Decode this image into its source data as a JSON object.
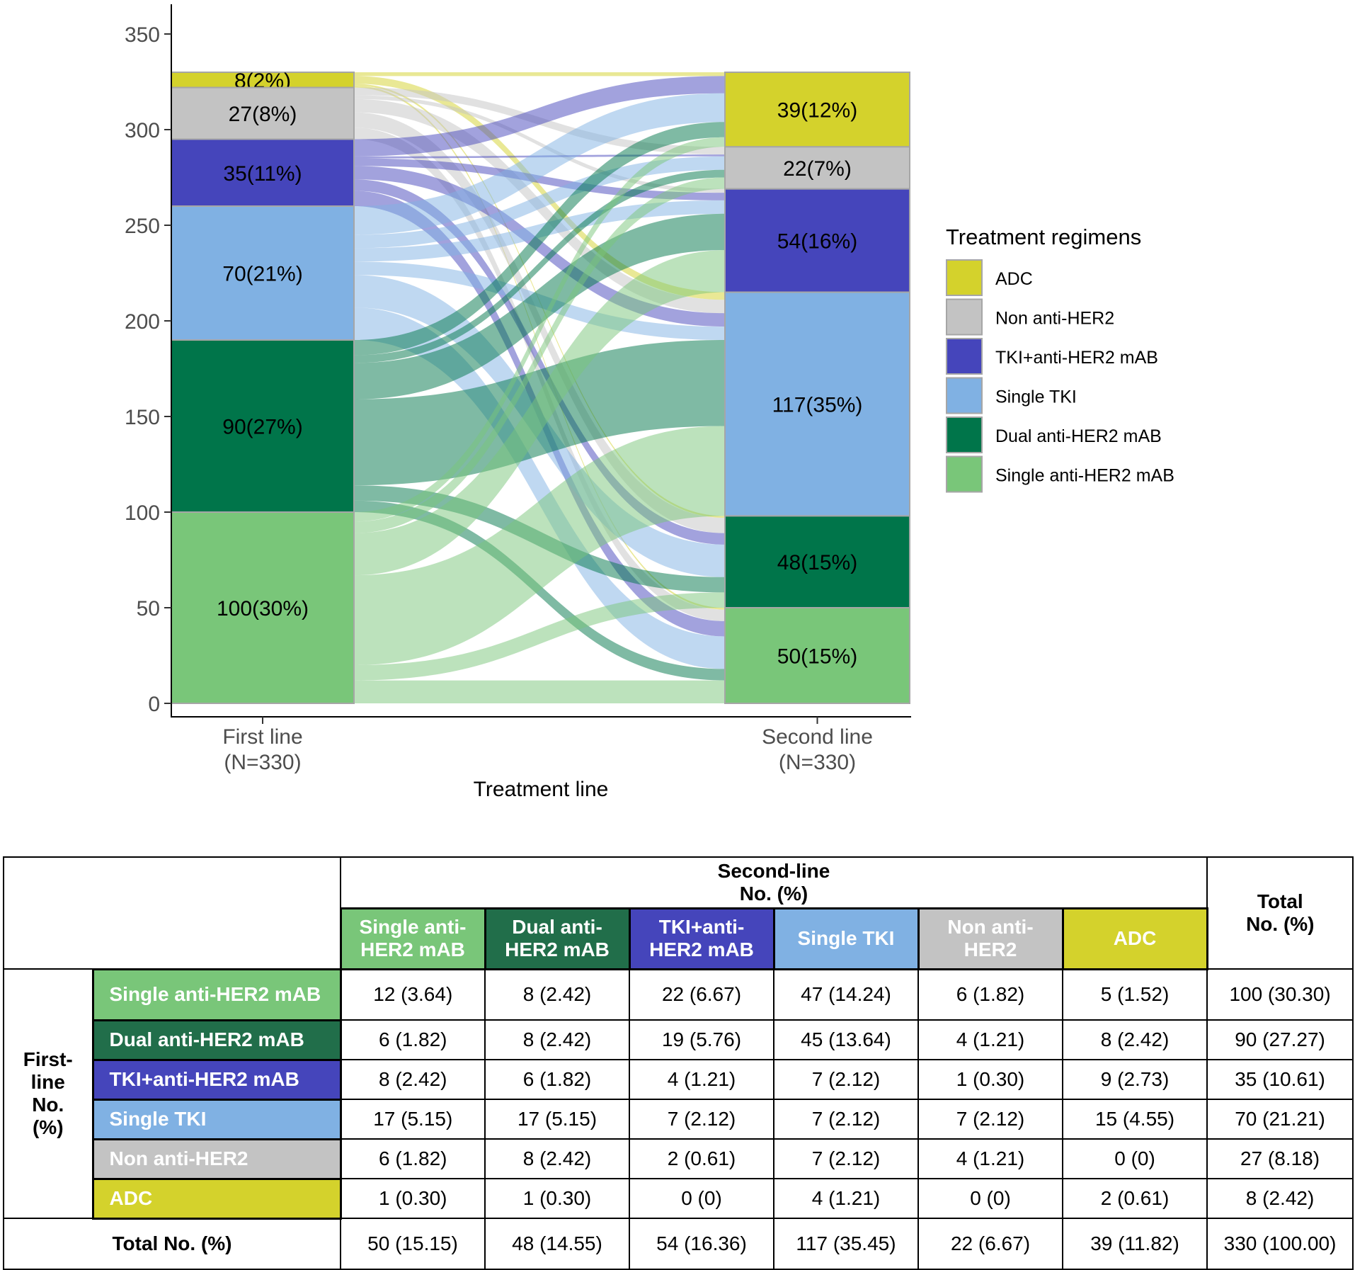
{
  "chart_data": {
    "type": "alluvial",
    "xlabel": "Treatment line",
    "ylabel": "",
    "ylim": [
      0,
      360
    ],
    "yticks": [
      0,
      50,
      100,
      150,
      200,
      250,
      300,
      350
    ],
    "axes": [
      {
        "name": "First line",
        "n_label": "(N=330)"
      },
      {
        "name": "Second line",
        "n_label": "(N=330)"
      }
    ],
    "legend": {
      "title": "Treatment regimens",
      "position": "right",
      "items": [
        "ADC",
        "Non anti-HER2",
        "TKI+anti-HER2 mAB",
        "Single TKI",
        "Dual anti-HER2 mAB",
        "Single anti-HER2 mAB"
      ]
    },
    "categories": [
      "ADC",
      "Non anti-HER2",
      "TKI+anti-HER2 mAB",
      "Single TKI",
      "Dual anti-HER2 mAB",
      "Single anti-HER2 mAB"
    ],
    "colors": {
      "ADC": "#d4d22c",
      "Non anti-HER2": "#c3c3c3",
      "TKI+anti-HER2 mAB": "#4545bb",
      "Single TKI": "#80b1e3",
      "Dual anti-HER2 mAB": "#00754a",
      "Single anti-HER2 mAB": "#79c679"
    },
    "first_line_labels": {
      "ADC": "8(2%)",
      "Non anti-HER2": "27(8%)",
      "TKI+anti-HER2 mAB": "35(11%)",
      "Single TKI": "70(21%)",
      "Dual anti-HER2 mAB": "90(27%)",
      "Single anti-HER2 mAB": "100(30%)"
    },
    "second_line_labels": {
      "ADC": "39(12%)",
      "Non anti-HER2": "22(7%)",
      "TKI+anti-HER2 mAB": "54(16%)",
      "Single TKI": "117(35%)",
      "Dual anti-HER2 mAB": "48(15%)",
      "Single anti-HER2 mAB": "50(15%)"
    },
    "flows": {
      "Single anti-HER2 mAB": {
        "Single anti-HER2 mAB": 12,
        "Dual anti-HER2 mAB": 8,
        "TKI+anti-HER2 mAB": 22,
        "Single TKI": 47,
        "Non anti-HER2": 6,
        "ADC": 5
      },
      "Dual anti-HER2 mAB": {
        "Single anti-HER2 mAB": 6,
        "Dual anti-HER2 mAB": 8,
        "TKI+anti-HER2 mAB": 19,
        "Single TKI": 45,
        "Non anti-HER2": 4,
        "ADC": 8
      },
      "TKI+anti-HER2 mAB": {
        "Single anti-HER2 mAB": 8,
        "Dual anti-HER2 mAB": 6,
        "TKI+anti-HER2 mAB": 4,
        "Single TKI": 7,
        "Non anti-HER2": 1,
        "ADC": 9
      },
      "Single TKI": {
        "Single anti-HER2 mAB": 17,
        "Dual anti-HER2 mAB": 17,
        "TKI+anti-HER2 mAB": 7,
        "Single TKI": 7,
        "Non anti-HER2": 7,
        "ADC": 15
      },
      "Non anti-HER2": {
        "Single anti-HER2 mAB": 6,
        "Dual anti-HER2 mAB": 8,
        "TKI+anti-HER2 mAB": 2,
        "Single TKI": 7,
        "Non anti-HER2": 4,
        "ADC": 0
      },
      "ADC": {
        "Single anti-HER2 mAB": 1,
        "Dual anti-HER2 mAB": 1,
        "TKI+anti-HER2 mAB": 0,
        "Single TKI": 4,
        "Non anti-HER2": 0,
        "ADC": 2
      }
    }
  },
  "table": {
    "second_line_header": "Second-line",
    "second_line_sub": "No. (%)",
    "total_header": "Total",
    "total_sub": "No. (%)",
    "first_line_header": "First-line No. (%)",
    "columns": [
      {
        "label": "Single anti-HER2 mAB",
        "color": "#79c679"
      },
      {
        "label": "Dual anti-HER2 mAB",
        "color": "#216e4a"
      },
      {
        "label": "TKI+anti-HER2 mAB",
        "color": "#4545bb"
      },
      {
        "label": "Single TKI",
        "color": "#80b1e3"
      },
      {
        "label": "Non anti-HER2",
        "color": "#c3c3c3"
      },
      {
        "label": "ADC",
        "color": "#d4d22c"
      }
    ],
    "rows": [
      {
        "label": "Single anti-HER2 mAB",
        "color": "#79c679",
        "cells": [
          "12 (3.64)",
          "8 (2.42)",
          "22 (6.67)",
          "47 (14.24)",
          "6 (1.82)",
          "5 (1.52)"
        ],
        "total": "100 (30.30)"
      },
      {
        "label": "Dual anti-HER2 mAB",
        "color": "#216e4a",
        "cells": [
          "6 (1.82)",
          "8 (2.42)",
          "19 (5.76)",
          "45 (13.64)",
          "4 (1.21)",
          "8 (2.42)"
        ],
        "total": "90 (27.27)"
      },
      {
        "label": "TKI+anti-HER2 mAB",
        "color": "#4545bb",
        "cells": [
          "8 (2.42)",
          "6 (1.82)",
          "4 (1.21)",
          "7 (2.12)",
          "1 (0.30)",
          "9 (2.73)"
        ],
        "total": "35 (10.61)"
      },
      {
        "label": "Single TKI",
        "color": "#80b1e3",
        "cells": [
          "17 (5.15)",
          "17 (5.15)",
          "7 (2.12)",
          "7 (2.12)",
          "7 (2.12)",
          "15 (4.55)"
        ],
        "total": "70 (21.21)"
      },
      {
        "label": "Non anti-HER2",
        "color": "#c3c3c3",
        "cells": [
          "6 (1.82)",
          "8 (2.42)",
          "2 (0.61)",
          "7 (2.12)",
          "4 (1.21)",
          "0 (0)"
        ],
        "total": "27 (8.18)"
      },
      {
        "label": "ADC",
        "color": "#d4d22c",
        "cells": [
          "1 (0.30)",
          "1 (0.30)",
          "0 (0)",
          "4 (1.21)",
          "0 (0)",
          "2 (0.61)"
        ],
        "total": "8 (2.42)"
      }
    ],
    "total_row": {
      "label": "Total No. (%)",
      "cells": [
        "50 (15.15)",
        "48 (14.55)",
        "54 (16.36)",
        "117 (35.45)",
        "22 (6.67)",
        "39 (11.82)"
      ],
      "total": "330 (100.00)"
    }
  }
}
